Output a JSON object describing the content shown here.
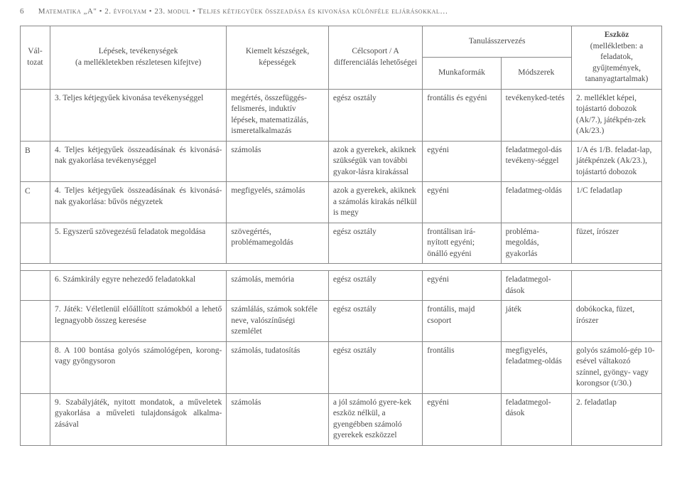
{
  "header": {
    "page_number": "6",
    "subject": "Matematika „A\"",
    "grade": "2. évfolyam",
    "module_num": "23. modul",
    "module_title": "Teljes kétjegyűek összeadása és kivonása különféle eljárásokkal…"
  },
  "table": {
    "head": {
      "variant": "Vál-\ntozat",
      "steps": "Lépések, tevékenységek",
      "steps_sub": "(a mellékletekben részletesen kifejtve)",
      "skills": "Kiemelt készségek, képességek",
      "target": "Célcsoport /\nA differenciálás lehetőségei",
      "org": "Tanulásszervezés",
      "forms": "Munkaformák",
      "methods": "Módszerek",
      "tools": "Eszköz",
      "tools_sub": "(mellékletben:\na feladatok,\ngyűjtemények, tananyagtartalmak)"
    },
    "rows": [
      {
        "variant": "",
        "num": "3.",
        "steps": "Teljes kétjegyűek kivonása tevékenységgel",
        "skills": "megértés,\nösszefüggés-felismerés, induktív lépések, matematizálás, ismeretalkalmazás",
        "target": "egész osztály",
        "forms": "frontális és egyéni",
        "methods": "tevékenyked-tetés",
        "tools": "2. melléklet képei, tojástartó dobozok (Ak/7.), játékpén-zek (Ak/23.)"
      },
      {
        "variant": "B",
        "num": "4.",
        "steps": "Teljes kétjegyűek összeadásának és kivonásá-nak gyakorlása tevékenységgel",
        "skills": "számolás",
        "target": "azok a gyerekek, akiknek szükségük van további gyakor-lásra kirakással",
        "forms": "egyéni",
        "methods": "feladatmegol-dás tevékeny-séggel",
        "tools": "1/A és 1/B. feladat-lap, játékpénzek (Ak/23.), tojástartó dobozok"
      },
      {
        "variant": "C",
        "num": "4.",
        "steps": "Teljes kétjegyűek összeadásának és kivonásá-nak gyakorlása: bűvös négyzetek",
        "skills": "megfigyelés, számolás",
        "target": "azok a gyerekek, akiknek a számolás kirakás nélkül is megy",
        "forms": "egyéni",
        "methods": "feladatmeg-oldás",
        "tools": "1/C feladatlap"
      },
      {
        "variant": "",
        "num": "5.",
        "steps": "Egyszerű szövegezésű feladatok megoldása",
        "skills": "szövegértés, problémamegoldás",
        "target": "egész osztály",
        "forms": "frontálisan irá-nyított egyéni; önálló egyéni",
        "methods": "probléma-megoldás, gyakorlás",
        "tools": "füzet, írószer"
      },
      {
        "variant": "",
        "num": "6.",
        "steps": "Számkirály egyre nehezedő feladatokkal",
        "skills": "számolás,\nmemória",
        "target": "egész osztály",
        "forms": "egyéni",
        "methods": "feladatmegol-dások",
        "tools": ""
      },
      {
        "variant": "",
        "num": "7.",
        "steps": "Játék: Véletlenül előállított számokból a lehető legnagyobb összeg keresése",
        "skills": "számlálás, számok sokféle neve,\nvalószínűségi szemlélet",
        "target": "egész osztály",
        "forms": "frontális, majd csoport",
        "methods": "játék",
        "tools": "dobókocka, füzet, írószer"
      },
      {
        "variant": "",
        "num": "8.",
        "steps": "A 100 bontása golyós számológépen, korong- vagy gyöngysoron",
        "skills": "számolás, tudatosítás",
        "target": "egész osztály",
        "forms": "frontális",
        "methods": "megfigyelés, feladatmeg-oldás",
        "tools": "golyós számoló-gép 10-esével váltakozó színnel, gyöngy- vagy korongsor (t/30.)"
      },
      {
        "variant": "",
        "num": "9.",
        "steps": "Szabályjáték, nyitott mondatok, a műveletek gyakorlása a műveleti tulajdonságok alkalma-zásával",
        "skills": "számolás",
        "target": "a jól számoló gyere-kek eszköz nélkül, a gyengébben számoló gyerekek eszközzel",
        "forms": "egyéni",
        "methods": "feladatmegol-dások",
        "tools": "2. feladatlap"
      }
    ]
  }
}
